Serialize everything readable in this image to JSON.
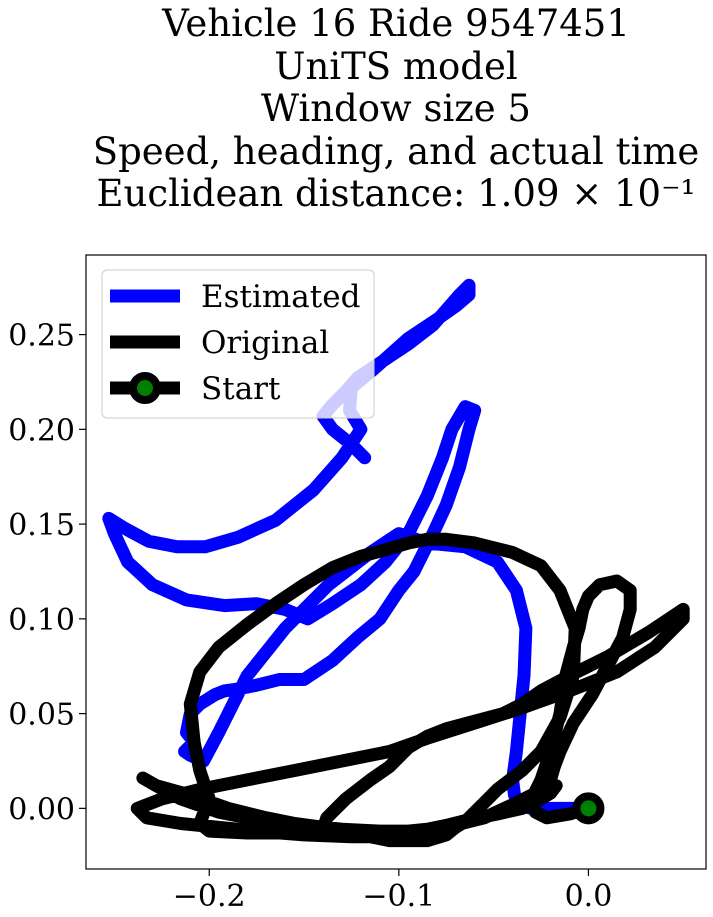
{
  "chart_data": {
    "type": "line",
    "title_lines": [
      "Vehicle 16 Ride 9547451",
      "UniTS model",
      "Window size 5",
      "Speed, heading, and actual time",
      "Euclidean distance: 1.09 × 10⁻¹"
    ],
    "xlabel": "",
    "ylabel": "",
    "xlim": [
      -0.265,
      0.062
    ],
    "ylim": [
      -0.032,
      0.292
    ],
    "xticks": [
      -0.2,
      -0.1,
      0.0
    ],
    "xtick_labels": [
      "−0.2",
      "−0.1",
      "0.0"
    ],
    "yticks": [
      0.0,
      0.05,
      0.1,
      0.15,
      0.2,
      0.25
    ],
    "ytick_labels": [
      "0.00",
      "0.05",
      "0.10",
      "0.15",
      "0.20",
      "0.25"
    ],
    "grid": false,
    "legend_position": "top-left",
    "series": [
      {
        "name": "Estimated",
        "color": "#0000ff",
        "x": [
          -0.118,
          -0.125,
          -0.135,
          -0.14,
          -0.135,
          -0.128,
          -0.122,
          -0.11,
          -0.095,
          -0.082,
          -0.075,
          -0.068,
          -0.063,
          -0.063,
          -0.07,
          -0.08,
          -0.095,
          -0.113,
          -0.125,
          -0.126,
          -0.12,
          -0.13,
          -0.145,
          -0.165,
          -0.185,
          -0.202,
          -0.217,
          -0.232,
          -0.245,
          -0.253,
          -0.25,
          -0.243,
          -0.23,
          -0.212,
          -0.192,
          -0.175,
          -0.16,
          -0.148,
          -0.135,
          -0.12,
          -0.107,
          -0.095,
          -0.085,
          -0.077,
          -0.072,
          -0.065,
          -0.06,
          -0.063,
          -0.068,
          -0.075,
          -0.082,
          -0.087,
          -0.092,
          -0.1,
          -0.11,
          -0.122,
          -0.135,
          -0.15,
          -0.163,
          -0.175,
          -0.185,
          -0.192,
          -0.197,
          -0.205,
          -0.21,
          -0.212,
          -0.208,
          -0.213,
          -0.21,
          -0.203,
          -0.195,
          -0.18,
          -0.16,
          -0.137,
          -0.115,
          -0.1,
          -0.085,
          -0.065,
          -0.048,
          -0.038,
          -0.033,
          -0.034,
          -0.036,
          -0.038,
          -0.04,
          -0.039,
          -0.037,
          -0.034,
          -0.03,
          -0.02,
          -0.008,
          0.0
        ],
        "y": [
          0.185,
          0.192,
          0.2,
          0.207,
          0.213,
          0.22,
          0.227,
          0.235,
          0.245,
          0.255,
          0.263,
          0.271,
          0.276,
          0.271,
          0.265,
          0.258,
          0.248,
          0.232,
          0.222,
          0.21,
          0.2,
          0.185,
          0.168,
          0.152,
          0.143,
          0.138,
          0.138,
          0.141,
          0.148,
          0.153,
          0.145,
          0.13,
          0.118,
          0.11,
          0.107,
          0.108,
          0.105,
          0.1,
          0.108,
          0.118,
          0.13,
          0.145,
          0.165,
          0.185,
          0.2,
          0.212,
          0.21,
          0.2,
          0.18,
          0.16,
          0.145,
          0.135,
          0.125,
          0.115,
          0.1,
          0.09,
          0.078,
          0.068,
          0.068,
          0.065,
          0.063,
          0.062,
          0.06,
          0.055,
          0.05,
          0.04,
          0.035,
          0.03,
          0.028,
          0.025,
          0.04,
          0.07,
          0.095,
          0.118,
          0.135,
          0.145,
          0.14,
          0.138,
          0.13,
          0.115,
          0.095,
          0.07,
          0.05,
          0.03,
          0.015,
          0.007,
          0.003,
          0.001,
          0.0,
          0.0,
          0.0,
          0.0
        ]
      },
      {
        "name": "Original",
        "color": "#000000",
        "x": [
          0.0,
          -0.01,
          -0.022,
          -0.028,
          -0.03,
          -0.025,
          -0.02,
          -0.015,
          -0.012,
          -0.008,
          -0.005,
          -0.003,
          0.0,
          0.006,
          0.015,
          0.022,
          0.022,
          0.018,
          0.01,
          0.002,
          -0.008,
          -0.015,
          -0.018,
          -0.02,
          -0.028,
          -0.04,
          -0.055,
          -0.075,
          -0.09,
          -0.105,
          -0.125,
          -0.15,
          -0.175,
          -0.195,
          -0.215,
          -0.233,
          -0.238,
          -0.225,
          -0.205,
          -0.18,
          -0.155,
          -0.13,
          -0.105,
          -0.085,
          -0.06,
          -0.035,
          -0.01,
          0.015,
          0.035,
          0.05,
          0.05,
          0.032,
          0.01,
          -0.01,
          -0.025,
          -0.035,
          -0.045,
          -0.06,
          -0.075,
          -0.085,
          -0.095,
          -0.105,
          -0.115,
          -0.128,
          -0.138,
          -0.14,
          -0.155,
          -0.18,
          -0.2,
          -0.205,
          -0.2,
          -0.205,
          -0.208,
          -0.21,
          -0.205,
          -0.195,
          -0.18,
          -0.165,
          -0.15,
          -0.135,
          -0.12,
          -0.105,
          -0.095,
          -0.085,
          -0.075,
          -0.06,
          -0.04,
          -0.025,
          -0.015,
          -0.007,
          -0.008,
          -0.015,
          -0.025,
          -0.035,
          -0.048,
          -0.055,
          -0.06,
          -0.065,
          -0.07,
          -0.075,
          -0.085,
          -0.095,
          -0.105,
          -0.115,
          -0.128,
          -0.14,
          -0.155,
          -0.175,
          -0.195,
          -0.215,
          -0.228,
          -0.235,
          -0.228,
          -0.21,
          -0.19,
          -0.17,
          -0.15,
          -0.13,
          -0.11,
          -0.095,
          -0.085,
          -0.075,
          -0.063,
          -0.048,
          -0.035,
          -0.025,
          -0.02,
          -0.017
        ],
        "y": [
          0.0,
          -0.003,
          -0.005,
          -0.002,
          0.005,
          0.015,
          0.03,
          0.05,
          0.07,
          0.085,
          0.095,
          0.105,
          0.112,
          0.118,
          0.12,
          0.115,
          0.105,
          0.09,
          0.075,
          0.06,
          0.045,
          0.03,
          0.022,
          0.015,
          0.008,
          0.002,
          -0.005,
          -0.01,
          -0.013,
          -0.015,
          -0.015,
          -0.014,
          -0.012,
          -0.01,
          -0.008,
          -0.005,
          0.0,
          0.005,
          0.01,
          0.015,
          0.02,
          0.025,
          0.03,
          0.037,
          0.045,
          0.053,
          0.062,
          0.072,
          0.085,
          0.1,
          0.105,
          0.093,
          0.08,
          0.07,
          0.062,
          0.055,
          0.05,
          0.046,
          0.042,
          0.038,
          0.032,
          0.022,
          0.015,
          0.005,
          -0.005,
          -0.011,
          -0.013,
          -0.013,
          -0.012,
          -0.008,
          0.005,
          0.02,
          0.035,
          0.055,
          0.072,
          0.085,
          0.097,
          0.108,
          0.118,
          0.127,
          0.133,
          0.137,
          0.14,
          0.142,
          0.142,
          0.14,
          0.135,
          0.128,
          0.115,
          0.095,
          0.07,
          0.048,
          0.03,
          0.02,
          0.01,
          0.003,
          -0.002,
          -0.007,
          -0.01,
          -0.014,
          -0.017,
          -0.017,
          -0.017,
          -0.015,
          -0.012,
          -0.01,
          -0.008,
          -0.006,
          -0.002,
          0.005,
          0.012,
          0.016,
          0.012,
          0.007,
          0.0,
          -0.005,
          -0.009,
          -0.011,
          -0.012,
          -0.012,
          -0.011,
          -0.009,
          -0.006,
          -0.003,
          0.0,
          0.005,
          0.008,
          0.012
        ]
      }
    ],
    "start_marker": {
      "name": "Start",
      "x": 0.0,
      "y": 0.0,
      "edge_color": "#000000",
      "face_color": "#008000"
    },
    "legend": [
      {
        "label": "Estimated",
        "color": "#0000ff",
        "marker": false
      },
      {
        "label": "Original",
        "color": "#000000",
        "marker": false
      },
      {
        "label": "Start",
        "color": "#000000",
        "marker": true
      }
    ]
  }
}
